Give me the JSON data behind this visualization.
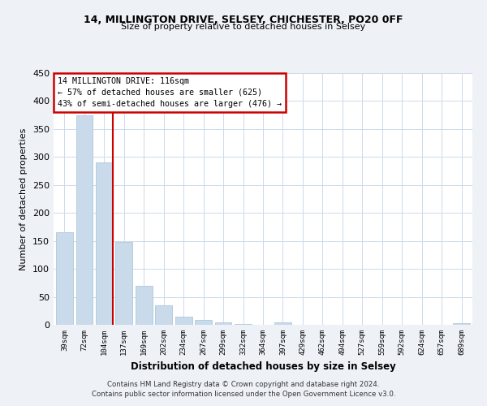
{
  "title_line1": "14, MILLINGTON DRIVE, SELSEY, CHICHESTER, PO20 0FF",
  "title_line2": "Size of property relative to detached houses in Selsey",
  "xlabel": "Distribution of detached houses by size in Selsey",
  "ylabel": "Number of detached properties",
  "bar_labels": [
    "39sqm",
    "72sqm",
    "104sqm",
    "137sqm",
    "169sqm",
    "202sqm",
    "234sqm",
    "267sqm",
    "299sqm",
    "332sqm",
    "364sqm",
    "397sqm",
    "429sqm",
    "462sqm",
    "494sqm",
    "527sqm",
    "559sqm",
    "592sqm",
    "624sqm",
    "657sqm",
    "689sqm"
  ],
  "bar_values": [
    165,
    375,
    290,
    148,
    70,
    35,
    15,
    8,
    5,
    2,
    0,
    4,
    0,
    0,
    0,
    0,
    0,
    0,
    0,
    0,
    3
  ],
  "bar_color": "#c9daea",
  "bar_edge_color": "#afc8dc",
  "vline_color": "#cc0000",
  "vline_pos": 2.42,
  "annotation_title": "14 MILLINGTON DRIVE: 116sqm",
  "annotation_line2": "← 57% of detached houses are smaller (625)",
  "annotation_line3": "43% of semi-detached houses are larger (476) →",
  "annotation_box_color": "#cc0000",
  "ylim": [
    0,
    450
  ],
  "yticks": [
    0,
    50,
    100,
    150,
    200,
    250,
    300,
    350,
    400,
    450
  ],
  "footnote_line1": "Contains HM Land Registry data © Crown copyright and database right 2024.",
  "footnote_line2": "Contains public sector information licensed under the Open Government Licence v3.0.",
  "bg_color": "#eef2f7",
  "plot_bg_color": "#ffffff",
  "grid_color": "#ccdaeb"
}
